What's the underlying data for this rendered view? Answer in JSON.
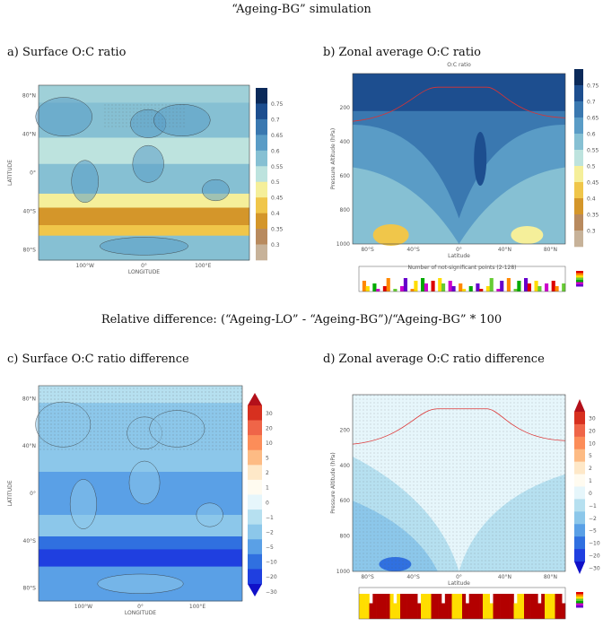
{
  "title": "“Ageing-BG” simulation",
  "subtitle": "Relative difference: (“Ageing-LO” - “Ageing-BG”)/“Ageing-BG” * 100",
  "panels": [
    {
      "label": "a) Surface O:C ratio",
      "xlabel": "LONGITUDE",
      "ylabel": "LATITUDE",
      "xticks": [
        "100°W",
        "0°",
        "100°E"
      ],
      "yticks": [
        "80°N",
        "40°N",
        "0°",
        "40°S",
        "80°S"
      ],
      "colorbar": [
        "0.75",
        "0.7",
        "0.65",
        "0.6",
        "0.55",
        "0.5",
        "0.45",
        "0.4",
        "0.35",
        "0.3"
      ]
    },
    {
      "label": "b) Zonal average O:C ratio",
      "plot_title": "O:C ratio",
      "xlabel": "Latitude",
      "ylabel": "Pressure Altitude (hPa)",
      "xticks": [
        "80°S",
        "40°S",
        "0°",
        "40°N",
        "80°N"
      ],
      "yticks": [
        "200",
        "400",
        "600",
        "800",
        "1000"
      ],
      "inset_title": "Number of not-significant points (2-128)",
      "colorbar": [
        "0.75",
        "0.7",
        "0.65",
        "0.6",
        "0.55",
        "0.5",
        "0.45",
        "0.4",
        "0.35",
        "0.3"
      ]
    },
    {
      "label": "c) Surface O:C ratio difference",
      "xlabel": "LONGITUDE",
      "ylabel": "LATITUDE",
      "xticks": [
        "100°W",
        "0°",
        "100°E"
      ],
      "yticks": [
        "80°N",
        "40°N",
        "0°",
        "40°S",
        "80°S"
      ],
      "colorbar": [
        "30",
        "20",
        "10",
        "5",
        "2",
        "1",
        "0",
        "−1",
        "−2",
        "−5",
        "−10",
        "−20",
        "−30"
      ]
    },
    {
      "label": "d) Zonal average O:C ratio difference",
      "xlabel": "Latitude",
      "ylabel": "Pressure Altitude (hPa)",
      "xticks": [
        "80°S",
        "40°S",
        "0°",
        "40°N",
        "80°N"
      ],
      "yticks": [
        "200",
        "400",
        "600",
        "800",
        "1000"
      ],
      "colorbar": [
        "30",
        "20",
        "10",
        "5",
        "2",
        "1",
        "0",
        "−1",
        "−2",
        "−5",
        "−10",
        "−20",
        "−30"
      ]
    }
  ]
}
